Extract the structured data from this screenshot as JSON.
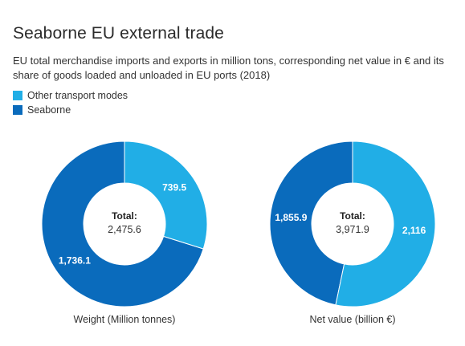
{
  "title": "Seaborne EU external trade",
  "subtitle": "EU total merchandise imports and exports in million tons, corresponding net value in € and its share of goods loaded and unloaded in EU ports (2018)",
  "legend": [
    {
      "label": "Other transport modes",
      "color": "#21aee6"
    },
    {
      "label": "Seaborne",
      "color": "#0a6bbc"
    }
  ],
  "chart_data": [
    {
      "type": "pie",
      "donut": true,
      "caption": "Weight (Million tonnes)",
      "center_title": "Total:",
      "center_value": "2,475.6",
      "slices": [
        {
          "name": "Other transport modes",
          "value": 739.5,
          "label": "739.5",
          "color": "#21aee6"
        },
        {
          "name": "Seaborne",
          "value": 1736.1,
          "label": "1,736.1",
          "color": "#0a6bbc"
        }
      ]
    },
    {
      "type": "pie",
      "donut": true,
      "caption": "Net value (billion €)",
      "center_title": "Total:",
      "center_value": "3,971.9",
      "slices": [
        {
          "name": "Other transport modes",
          "value": 2116,
          "label": "2,116",
          "color": "#21aee6"
        },
        {
          "name": "Seaborne",
          "value": 1855.9,
          "label": "1,855.9",
          "color": "#0a6bbc"
        }
      ]
    }
  ]
}
